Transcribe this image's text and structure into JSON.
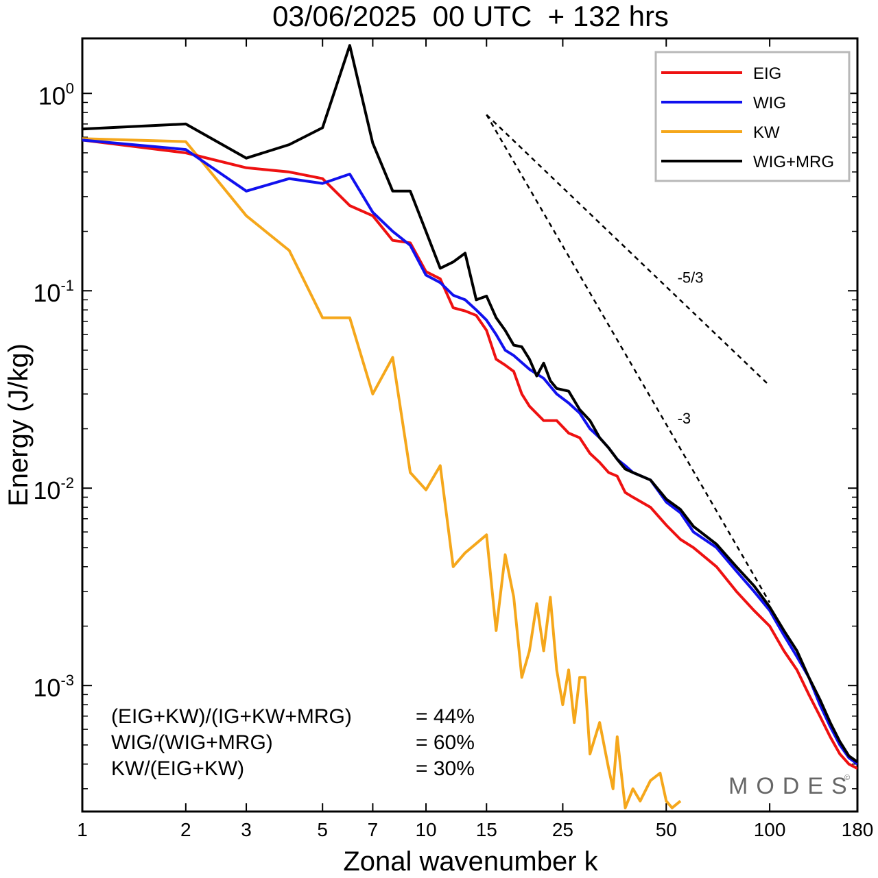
{
  "chart_data": {
    "type": "line",
    "title": "03/06/2025  00 UTC  + 132 hrs",
    "xlabel": "Zonal wavenumber k",
    "ylabel": "Energy (J/kg)",
    "x_scale": "log",
    "y_scale": "log",
    "xlim": [
      1,
      180
    ],
    "ylim": [
      0.00023,
      1.9
    ],
    "x_ticks": [
      {
        "value": 1,
        "label": "1"
      },
      {
        "value": 2,
        "label": "2"
      },
      {
        "value": 3,
        "label": "3"
      },
      {
        "value": 5,
        "label": "5"
      },
      {
        "value": 7,
        "label": "7"
      },
      {
        "value": 10,
        "label": "10"
      },
      {
        "value": 15,
        "label": "15"
      },
      {
        "value": 25,
        "label": "25"
      },
      {
        "value": 50,
        "label": "50"
      },
      {
        "value": 100,
        "label": "100"
      },
      {
        "value": 180,
        "label": "180"
      }
    ],
    "y_ticks": [
      {
        "value": 1,
        "base": "10",
        "exp": "0"
      },
      {
        "value": 0.1,
        "base": "10",
        "exp": "-1"
      },
      {
        "value": 0.01,
        "base": "10",
        "exp": "-2"
      },
      {
        "value": 0.001,
        "base": "10",
        "exp": "-3"
      }
    ],
    "grid": false,
    "legend_position": "top-right",
    "series": [
      {
        "name": "EIG",
        "color": "#ee1111",
        "points": [
          [
            1,
            0.58
          ],
          [
            2,
            0.5
          ],
          [
            3,
            0.42
          ],
          [
            4,
            0.4
          ],
          [
            5,
            0.37
          ],
          [
            6,
            0.27
          ],
          [
            7,
            0.24
          ],
          [
            8,
            0.18
          ],
          [
            9,
            0.175
          ],
          [
            10,
            0.125
          ],
          [
            11,
            0.115
          ],
          [
            12,
            0.082
          ],
          [
            13,
            0.079
          ],
          [
            14,
            0.075
          ],
          [
            15,
            0.063
          ],
          [
            16,
            0.045
          ],
          [
            17,
            0.042
          ],
          [
            18,
            0.039
          ],
          [
            19,
            0.03
          ],
          [
            20,
            0.026
          ],
          [
            22,
            0.022
          ],
          [
            24,
            0.022
          ],
          [
            26,
            0.019
          ],
          [
            28,
            0.018
          ],
          [
            30,
            0.015
          ],
          [
            32,
            0.0135
          ],
          [
            34,
            0.012
          ],
          [
            36,
            0.0115
          ],
          [
            38,
            0.0095
          ],
          [
            40,
            0.009
          ],
          [
            45,
            0.008
          ],
          [
            50,
            0.0065
          ],
          [
            55,
            0.0055
          ],
          [
            60,
            0.005
          ],
          [
            70,
            0.004
          ],
          [
            80,
            0.003
          ],
          [
            90,
            0.0024
          ],
          [
            100,
            0.002
          ],
          [
            110,
            0.0015
          ],
          [
            120,
            0.0012
          ],
          [
            130,
            0.0009
          ],
          [
            140,
            0.0007
          ],
          [
            150,
            0.00055
          ],
          [
            160,
            0.00045
          ],
          [
            170,
            0.0004
          ],
          [
            180,
            0.00038
          ]
        ]
      },
      {
        "name": "WIG",
        "color": "#1111ee",
        "points": [
          [
            1,
            0.58
          ],
          [
            2,
            0.52
          ],
          [
            3,
            0.32
          ],
          [
            4,
            0.37
          ],
          [
            5,
            0.35
          ],
          [
            6,
            0.39
          ],
          [
            7,
            0.25
          ],
          [
            8,
            0.2
          ],
          [
            9,
            0.17
          ],
          [
            10,
            0.12
          ],
          [
            11,
            0.11
          ],
          [
            12,
            0.095
          ],
          [
            13,
            0.09
          ],
          [
            14,
            0.08
          ],
          [
            15,
            0.071
          ],
          [
            16,
            0.06
          ],
          [
            17,
            0.05
          ],
          [
            18,
            0.047
          ],
          [
            20,
            0.04
          ],
          [
            22,
            0.036
          ],
          [
            24,
            0.03
          ],
          [
            26,
            0.027
          ],
          [
            28,
            0.024
          ],
          [
            30,
            0.02
          ],
          [
            32,
            0.018
          ],
          [
            34,
            0.016
          ],
          [
            36,
            0.014
          ],
          [
            38,
            0.013
          ],
          [
            40,
            0.012
          ],
          [
            45,
            0.011
          ],
          [
            50,
            0.0085
          ],
          [
            55,
            0.0075
          ],
          [
            60,
            0.006
          ],
          [
            70,
            0.005
          ],
          [
            80,
            0.0038
          ],
          [
            90,
            0.003
          ],
          [
            100,
            0.0024
          ],
          [
            110,
            0.0018
          ],
          [
            120,
            0.0014
          ],
          [
            130,
            0.0011
          ],
          [
            140,
            0.0008
          ],
          [
            150,
            0.00062
          ],
          [
            160,
            0.0005
          ],
          [
            170,
            0.00043
          ],
          [
            180,
            0.0004
          ]
        ]
      },
      {
        "name": "KW",
        "color": "#f5a71b",
        "points": [
          [
            1,
            0.59
          ],
          [
            2,
            0.57
          ],
          [
            3,
            0.24
          ],
          [
            4,
            0.16
          ],
          [
            5,
            0.073
          ],
          [
            6,
            0.073
          ],
          [
            7,
            0.03
          ],
          [
            8,
            0.046
          ],
          [
            9,
            0.012
          ],
          [
            10,
            0.0098
          ],
          [
            11,
            0.013
          ],
          [
            12,
            0.004
          ],
          [
            13,
            0.0047
          ],
          [
            15,
            0.0058
          ],
          [
            16,
            0.0019
          ],
          [
            17,
            0.0046
          ],
          [
            18,
            0.0028
          ],
          [
            19,
            0.0011
          ],
          [
            20,
            0.0015
          ],
          [
            21,
            0.0026
          ],
          [
            22,
            0.0015
          ],
          [
            23,
            0.0028
          ],
          [
            24,
            0.0012
          ],
          [
            25,
            0.0008
          ],
          [
            26,
            0.0012
          ],
          [
            27,
            0.00065
          ],
          [
            28,
            0.0011
          ],
          [
            29,
            0.0011
          ],
          [
            30,
            0.00045
          ],
          [
            32,
            0.00065
          ],
          [
            34,
            0.00038
          ],
          [
            35,
            0.0003
          ],
          [
            36,
            0.00055
          ],
          [
            38,
            0.00024
          ],
          [
            40,
            0.0003
          ],
          [
            42,
            0.00026
          ],
          [
            45,
            0.00033
          ],
          [
            48,
            0.00036
          ],
          [
            50,
            0.00026
          ],
          [
            52,
            0.00024
          ],
          [
            55,
            0.00026
          ]
        ]
      },
      {
        "name": "WIG+MRG",
        "color": "#000000",
        "points": [
          [
            1,
            0.66
          ],
          [
            2,
            0.7
          ],
          [
            3,
            0.47
          ],
          [
            4,
            0.55
          ],
          [
            5,
            0.67
          ],
          [
            6,
            1.75
          ],
          [
            7,
            0.56
          ],
          [
            8,
            0.32
          ],
          [
            9,
            0.32
          ],
          [
            10,
            0.2
          ],
          [
            11,
            0.13
          ],
          [
            12,
            0.14
          ],
          [
            13,
            0.155
          ],
          [
            14,
            0.09
          ],
          [
            15,
            0.094
          ],
          [
            16,
            0.073
          ],
          [
            17,
            0.063
          ],
          [
            18,
            0.053
          ],
          [
            19,
            0.052
          ],
          [
            20,
            0.045
          ],
          [
            21,
            0.037
          ],
          [
            22,
            0.043
          ],
          [
            23,
            0.035
          ],
          [
            24,
            0.032
          ],
          [
            26,
            0.031
          ],
          [
            28,
            0.025
          ],
          [
            30,
            0.022
          ],
          [
            32,
            0.018
          ],
          [
            34,
            0.016
          ],
          [
            36,
            0.014
          ],
          [
            38,
            0.0125
          ],
          [
            40,
            0.012
          ],
          [
            45,
            0.011
          ],
          [
            50,
            0.0088
          ],
          [
            55,
            0.0078
          ],
          [
            60,
            0.0064
          ],
          [
            70,
            0.0052
          ],
          [
            80,
            0.004
          ],
          [
            90,
            0.0032
          ],
          [
            100,
            0.0025
          ],
          [
            110,
            0.0019
          ],
          [
            120,
            0.0015
          ],
          [
            130,
            0.0011
          ],
          [
            140,
            0.00085
          ],
          [
            150,
            0.00065
          ],
          [
            160,
            0.00052
          ],
          [
            170,
            0.00044
          ],
          [
            180,
            0.00041
          ]
        ]
      }
    ],
    "reference_lines": [
      {
        "label": "-5/3",
        "slope": -1.6667,
        "x_start": 15,
        "x_end": 100,
        "y_start": 0.78
      },
      {
        "label": "-3",
        "slope": -3,
        "x_start": 15,
        "x_end": 100,
        "y_start": 0.78
      }
    ],
    "annotations": [
      {
        "text": "(EIG+KW)/(IG+KW+MRG)",
        "value": "= 44%"
      },
      {
        "text": "WIG/(WIG+MRG)",
        "value": "= 60%"
      },
      {
        "text": "KW/(EIG+KW)",
        "value": "= 30%"
      }
    ],
    "watermark": "MODES",
    "watermark_mark": "©"
  }
}
